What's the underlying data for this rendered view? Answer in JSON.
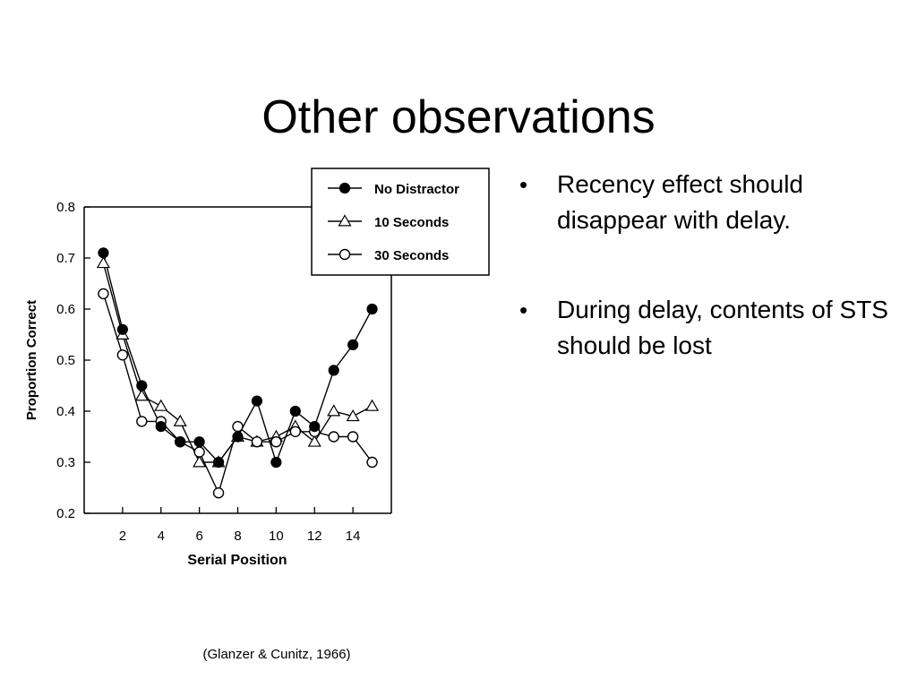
{
  "slide": {
    "title": "Other observations",
    "bullets": [
      "Recency effect should disappear with delay.",
      "During delay, contents of STS should be lost"
    ],
    "citation": "(Glanzer & Cunitz, 1966)"
  },
  "chart_data": {
    "type": "line",
    "title": "",
    "xlabel": "Serial Position",
    "ylabel": "Proportion Correct",
    "xlim": [
      0,
      16
    ],
    "ylim": [
      0.2,
      0.8
    ],
    "xticks": [
      2,
      4,
      6,
      8,
      10,
      12,
      14
    ],
    "yticks": [
      "0.2",
      "0.3",
      "0.4",
      "0.5",
      "0.6",
      "0.7",
      "0.8"
    ],
    "grid": false,
    "legend_position": "top-right",
    "x": [
      1,
      2,
      3,
      4,
      5,
      6,
      7,
      8,
      9,
      10,
      11,
      12,
      13,
      14,
      15
    ],
    "series": [
      {
        "name": "No Distractor",
        "marker": "filled-circle",
        "values": [
          0.71,
          0.56,
          0.45,
          0.37,
          0.34,
          0.34,
          0.3,
          0.35,
          0.42,
          0.3,
          0.4,
          0.37,
          0.48,
          0.53,
          0.6
        ]
      },
      {
        "name": "10 Seconds",
        "marker": "open-triangle",
        "values": [
          0.69,
          0.55,
          0.43,
          0.41,
          0.38,
          0.3,
          0.3,
          0.35,
          0.34,
          0.35,
          0.37,
          0.34,
          0.4,
          0.39,
          0.41
        ]
      },
      {
        "name": "30 Seconds",
        "marker": "open-circle",
        "values": [
          0.63,
          0.51,
          0.38,
          0.38,
          0.34,
          0.32,
          0.24,
          0.37,
          0.34,
          0.34,
          0.36,
          0.36,
          0.35,
          0.35,
          0.3
        ]
      }
    ]
  }
}
